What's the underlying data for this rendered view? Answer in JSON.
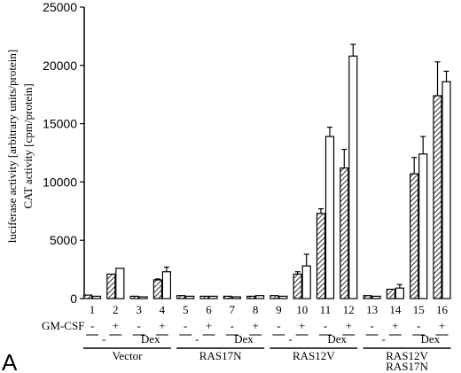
{
  "panel_label": "A",
  "chart_data": {
    "type": "bar",
    "ylabel_lines": [
      "luciferase activity [arbitrary units/protein]",
      "CAT activity [cpm/protein]"
    ],
    "ylim": [
      0,
      25000
    ],
    "yticks": [
      "0",
      "5000",
      "10000",
      "15000",
      "20000",
      "25000"
    ],
    "ytick_values": [
      0,
      5000,
      10000,
      15000,
      20000,
      25000
    ],
    "lane_numbers": [
      "1",
      "2",
      "3",
      "4",
      "5",
      "6",
      "7",
      "8",
      "9",
      "10",
      "11",
      "12",
      "13",
      "14",
      "15",
      "16"
    ],
    "gm_csf_label": "GM-CSF",
    "gm_csf_signs": [
      "-",
      "+",
      "-",
      "+",
      "-",
      "+",
      "-",
      "+",
      "-",
      "+",
      "-",
      "+",
      "-",
      "+",
      "-",
      "+"
    ],
    "dex_labels": [
      "-",
      "Dex",
      "-",
      "Dex",
      "-",
      "Dex",
      "-",
      "Dex"
    ],
    "group_labels": [
      "Vector",
      "RAS17N",
      "RAS12V",
      "RAS12V\nRAS17N"
    ],
    "series": [
      {
        "pattern": "hatched",
        "values": [
          300,
          2100,
          200,
          1600,
          250,
          200,
          200,
          200,
          250,
          2100,
          7300,
          11200,
          250,
          800,
          10700,
          17400
        ],
        "errors": [
          0,
          0,
          0,
          80,
          0,
          0,
          0,
          0,
          0,
          200,
          400,
          1600,
          0,
          0,
          1400,
          2900
        ]
      },
      {
        "pattern": "open",
        "values": [
          200,
          2600,
          150,
          2300,
          200,
          200,
          150,
          250,
          200,
          2800,
          13900,
          20800,
          200,
          900,
          12400,
          18600
        ],
        "errors": [
          0,
          0,
          0,
          400,
          0,
          0,
          0,
          0,
          0,
          1000,
          800,
          1000,
          0,
          300,
          1500,
          900
        ]
      }
    ]
  }
}
